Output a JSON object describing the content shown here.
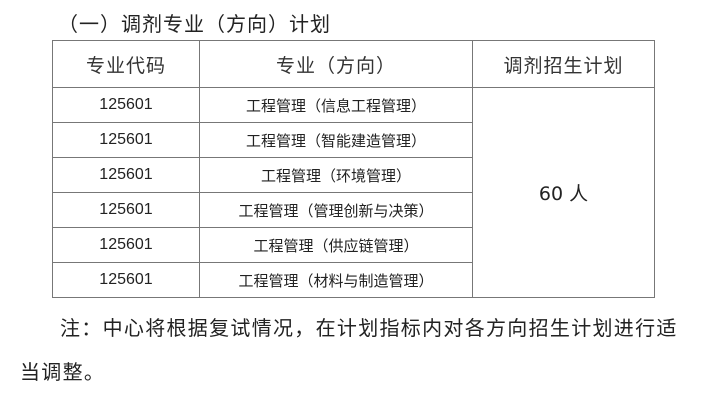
{
  "section_title": "（一）调剂专业（方向）计划",
  "table": {
    "headers": [
      "专业代码",
      "专业（方向）",
      "调剂招生计划"
    ],
    "rows": [
      {
        "code": "125601",
        "major": "工程管理（信息工程管理）"
      },
      {
        "code": "125601",
        "major": "工程管理（智能建造管理）"
      },
      {
        "code": "125601",
        "major": "工程管理（环境管理）"
      },
      {
        "code": "125601",
        "major": "工程管理（管理创新与决策）"
      },
      {
        "code": "125601",
        "major": "工程管理（供应链管理）"
      },
      {
        "code": "125601",
        "major": "工程管理（材料与制造管理）"
      }
    ],
    "plan": "60 人"
  },
  "note": {
    "line1": "注：中心将根据复试情况，在计划指标内对各方向招生计划进行适",
    "line2": "当调整。"
  }
}
